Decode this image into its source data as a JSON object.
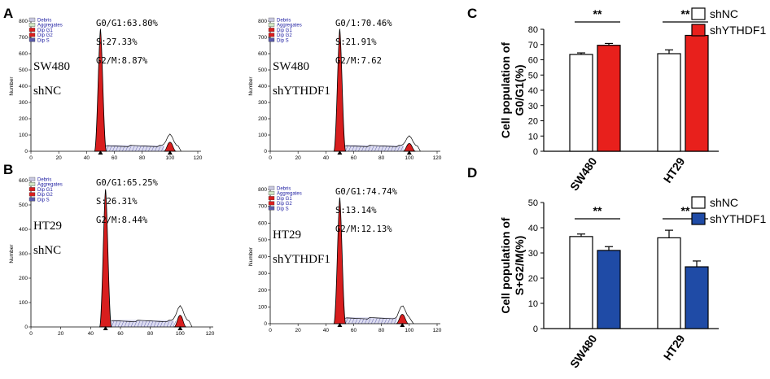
{
  "panels": {
    "A": "A",
    "B": "B",
    "C": "C",
    "D": "D"
  },
  "histogram_common": {
    "ylabel": "Number",
    "x_ticks": [
      "0",
      "20",
      "40",
      "60",
      "80",
      "100",
      "120"
    ],
    "legend": [
      "Debris",
      "Aggregates",
      "Dip G1",
      "Dip G2",
      "Dip S"
    ],
    "legend_colors": [
      "#c8c8e0",
      "#cfe6c4",
      "#d81e1e",
      "#d81e1e",
      "#5a5aa8"
    ]
  },
  "histograms": [
    {
      "panel": "A",
      "sample_line1": "SW480",
      "sample_line2": "shNC",
      "stats": [
        "G0/G1:63.80%",
        "S:27.33%",
        "G2/M:8.87%"
      ],
      "y_ticks": [
        "0",
        "100",
        "200",
        "300",
        "400",
        "500",
        "600",
        "700",
        "800"
      ],
      "peak_g1_x": 50,
      "peak_g1_height": 0.94,
      "peak_g2_x": 100,
      "peak_g2_height": 0.07
    },
    {
      "panel": "A",
      "sample_line1": "SW480",
      "sample_line2": "shYTHDF1",
      "stats": [
        "G0/1:70.46%",
        "S:21.91%",
        "G2/M:7.62"
      ],
      "y_ticks": [
        "0",
        "100",
        "200",
        "300",
        "400",
        "500",
        "600",
        "700",
        "800"
      ],
      "peak_g1_x": 50,
      "peak_g1_height": 0.94,
      "peak_g2_x": 100,
      "peak_g2_height": 0.06
    },
    {
      "panel": "B",
      "sample_line1": "HT29",
      "sample_line2": "shNC",
      "stats": [
        "G0/G1:65.25%",
        "S:26.31%",
        "G2/M:8.44%"
      ],
      "y_ticks": [
        "0",
        "100",
        "200",
        "300",
        "400",
        "500",
        "600"
      ],
      "peak_g1_x": 50,
      "peak_g1_height": 0.94,
      "peak_g2_x": 100,
      "peak_g2_height": 0.08
    },
    {
      "panel": "B",
      "sample_line1": "HT29",
      "sample_line2": "shYTHDF1",
      "stats": [
        "G0/G1:74.74%",
        "S:13.14%",
        "G2/M:12.13%"
      ],
      "y_ticks": [
        "0",
        "100",
        "200",
        "300",
        "400",
        "500",
        "600",
        "700",
        "800"
      ],
      "peak_g1_x": 50,
      "peak_g1_height": 0.94,
      "peak_g2_x": 95,
      "peak_g2_height": 0.07
    }
  ],
  "chart_data": [
    {
      "panel": "C",
      "type": "bar",
      "categories": [
        "SW480",
        "HT29"
      ],
      "series": [
        {
          "name": "shNC",
          "color": "#ffffff",
          "values": [
            63.5,
            64
          ],
          "errors": [
            1,
            2.5
          ]
        },
        {
          "name": "shYTHDF1",
          "color": "#e8201c",
          "values": [
            69.5,
            76
          ],
          "errors": [
            1.2,
            2
          ]
        }
      ],
      "ylabel_line1": "Cell population of",
      "ylabel_line2": "G0/G1(%)",
      "ylim": [
        0,
        80
      ],
      "y_ticks": [
        "0",
        "10",
        "20",
        "30",
        "40",
        "50",
        "60",
        "70",
        "80"
      ],
      "significance": [
        "**",
        "**"
      ]
    },
    {
      "panel": "D",
      "type": "bar",
      "categories": [
        "SW480",
        "HT29"
      ],
      "series": [
        {
          "name": "shNC",
          "color": "#ffffff",
          "values": [
            36.5,
            36
          ],
          "errors": [
            1,
            3
          ]
        },
        {
          "name": "shYTHDF1",
          "color": "#1f4ba6",
          "values": [
            31,
            24.5
          ],
          "errors": [
            1.5,
            2.3
          ]
        }
      ],
      "ylabel_line1": "Cell population of",
      "ylabel_line2": "S+G2/M(%)",
      "ylim": [
        0,
        50
      ],
      "y_ticks": [
        "0",
        "10",
        "20",
        "30",
        "40",
        "50"
      ],
      "significance": [
        "**",
        "**"
      ]
    }
  ]
}
